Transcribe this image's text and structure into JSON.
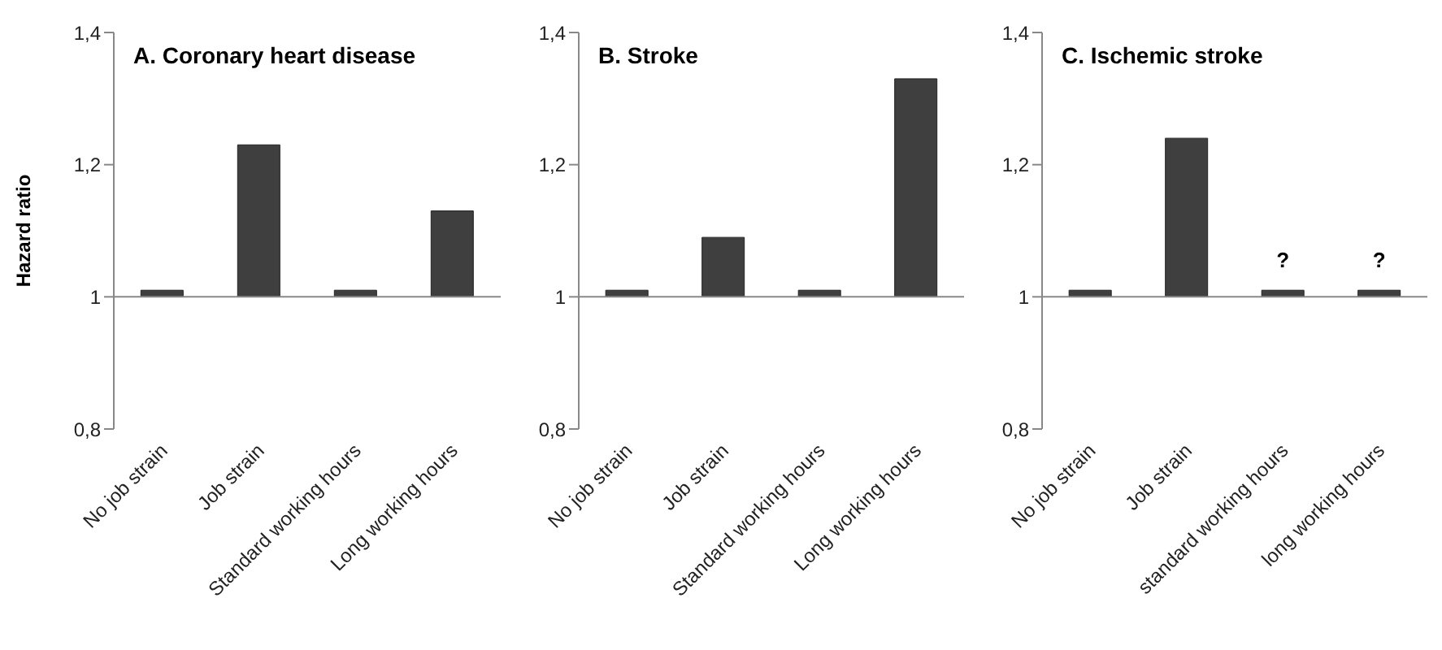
{
  "chart_data": [
    {
      "type": "bar",
      "title": "A. Coronary heart disease",
      "ylabel": "Hazard ratio",
      "categories": [
        "No job strain",
        "Job strain",
        "Standard working hours",
        "Long working hours"
      ],
      "base": [
        1,
        1,
        1,
        1
      ],
      "values": [
        0.01,
        0.23,
        0.01,
        0.13
      ],
      "color": "#3f3f3f",
      "ylim": [
        0.8,
        1.4
      ],
      "yticks": [
        {
          "value": 0.8,
          "label": "0,8"
        },
        {
          "value": 1,
          "label": "1"
        },
        {
          "value": 1.2,
          "label": "1,2"
        },
        {
          "value": 1.4,
          "label": "1,4"
        }
      ],
      "ref_lines": [
        {
          "axis": "y",
          "value": 1,
          "color": "#888888"
        }
      ],
      "grid": false,
      "legend": false
    },
    {
      "type": "bar",
      "title": "B. Stroke",
      "categories": [
        "No job strain",
        "Job strain",
        "Standard working hours",
        "Long working hours"
      ],
      "base": [
        1,
        1,
        1,
        1
      ],
      "values": [
        0.01,
        0.09,
        0.01,
        0.33
      ],
      "color": "#3f3f3f",
      "ylim": [
        0.8,
        1.4
      ],
      "yticks": [
        {
          "value": 0.8,
          "label": "0,8"
        },
        {
          "value": 1,
          "label": "1"
        },
        {
          "value": 1.2,
          "label": "1,2"
        },
        {
          "value": 1.4,
          "label": "1,4"
        }
      ],
      "ref_lines": [
        {
          "axis": "y",
          "value": 1,
          "color": "#888888"
        }
      ],
      "grid": false,
      "legend": false
    },
    {
      "type": "bar",
      "title": "C. Ischemic stroke",
      "categories": [
        "No job strain",
        "Job strain",
        "standard working hours",
        "long working hours"
      ],
      "base": [
        1,
        1,
        1,
        1
      ],
      "values": [
        0.01,
        0.24,
        0.01,
        0.01
      ],
      "color": "#3f3f3f",
      "ylim": [
        0.8,
        1.4
      ],
      "yticks": [
        {
          "value": 0.8,
          "label": "0,8"
        },
        {
          "value": 1,
          "label": "1"
        },
        {
          "value": 1.2,
          "label": "1,2"
        },
        {
          "value": 1.4,
          "label": "1,4"
        }
      ],
      "ref_lines": [
        {
          "axis": "y",
          "value": 1,
          "color": "#888888"
        }
      ],
      "annotations": [
        {
          "text": "?",
          "x": "standard working hours",
          "y": 1.01
        },
        {
          "text": "?",
          "x": "long working hours",
          "y": 1.01
        }
      ],
      "grid": false,
      "legend": false
    }
  ]
}
